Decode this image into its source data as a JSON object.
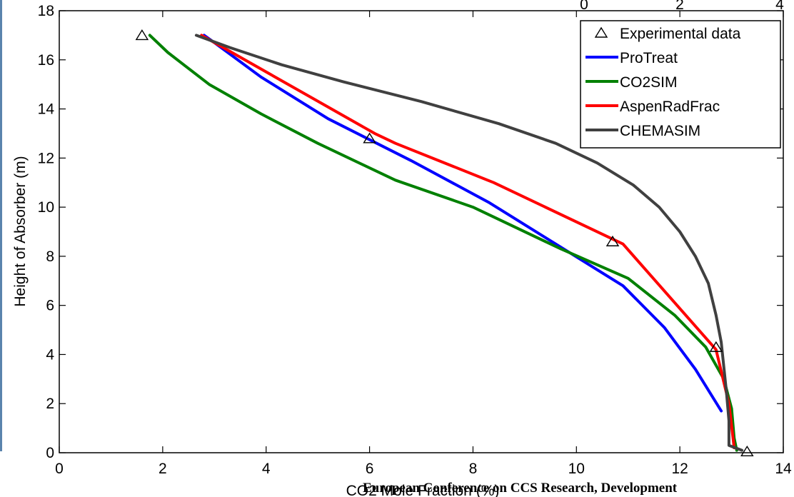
{
  "footer": {
    "text": "European Conference on CCS Research, Development"
  },
  "chart_data": {
    "type": "line",
    "title": "",
    "xlabel": "CO2 Mole Fraction (%)",
    "ylabel": "Height of Absorber (m)",
    "xlim": [
      0,
      14
    ],
    "ylim": [
      0,
      18
    ],
    "xticks": [
      0,
      2,
      4,
      6,
      8,
      10,
      12,
      14
    ],
    "yticks": [
      0,
      2,
      4,
      6,
      8,
      10,
      12,
      14,
      16,
      18
    ],
    "top_axis_ticks": [
      "0",
      "2",
      "4"
    ],
    "grid": false,
    "legend_position": "top-right",
    "series": [
      {
        "name": "Experimental data",
        "style": "markers",
        "marker": "triangle-open",
        "color": "#000000",
        "points": [
          [
            1.6,
            17.0
          ],
          [
            6.0,
            12.8
          ],
          [
            10.7,
            8.6
          ],
          [
            12.7,
            4.3
          ],
          [
            13.3,
            0.05
          ]
        ]
      },
      {
        "name": "ProTreat",
        "style": "line",
        "color": "#0000ff",
        "points": [
          [
            2.8,
            17.0
          ],
          [
            3.0,
            16.7
          ],
          [
            3.9,
            15.3
          ],
          [
            5.2,
            13.6
          ],
          [
            6.8,
            11.9
          ],
          [
            8.3,
            10.2
          ],
          [
            9.6,
            8.5
          ],
          [
            10.9,
            6.8
          ],
          [
            11.7,
            5.1
          ],
          [
            12.3,
            3.4
          ],
          [
            12.8,
            1.7
          ]
        ]
      },
      {
        "name": "CO2SIM",
        "style": "line",
        "color": "#008000",
        "points": [
          [
            1.75,
            17.0
          ],
          [
            2.1,
            16.3
          ],
          [
            2.9,
            15.0
          ],
          [
            3.9,
            13.8
          ],
          [
            5.0,
            12.6
          ],
          [
            6.5,
            11.1
          ],
          [
            8.0,
            10.0
          ],
          [
            9.7,
            8.3
          ],
          [
            11.0,
            7.1
          ],
          [
            11.9,
            5.6
          ],
          [
            12.5,
            4.3
          ],
          [
            12.85,
            3.0
          ],
          [
            13.0,
            1.8
          ],
          [
            13.05,
            0.6
          ],
          [
            13.1,
            0.1
          ]
        ]
      },
      {
        "name": "AspenRadFrac",
        "style": "line",
        "color": "#ff0000",
        "points": [
          [
            2.75,
            17.0
          ],
          [
            6.1,
            13.0
          ],
          [
            6.5,
            12.6
          ],
          [
            8.4,
            11.0
          ],
          [
            10.9,
            8.5
          ],
          [
            12.7,
            4.2
          ],
          [
            12.95,
            2.0
          ],
          [
            13.05,
            0.2
          ]
        ]
      },
      {
        "name": "CHEMASIM",
        "style": "line",
        "color": "#404040",
        "points": [
          [
            2.65,
            17.0
          ],
          [
            3.3,
            16.5
          ],
          [
            4.3,
            15.8
          ],
          [
            5.5,
            15.1
          ],
          [
            7.0,
            14.3
          ],
          [
            8.5,
            13.4
          ],
          [
            9.6,
            12.6
          ],
          [
            10.4,
            11.8
          ],
          [
            11.1,
            10.9
          ],
          [
            11.6,
            10.0
          ],
          [
            12.0,
            9.0
          ],
          [
            12.3,
            8.0
          ],
          [
            12.55,
            6.9
          ],
          [
            12.7,
            5.6
          ],
          [
            12.8,
            4.5
          ],
          [
            12.85,
            3.5
          ],
          [
            12.9,
            2.5
          ],
          [
            12.95,
            1.3
          ],
          [
            12.95,
            0.3
          ],
          [
            13.2,
            0.1
          ]
        ]
      }
    ]
  }
}
